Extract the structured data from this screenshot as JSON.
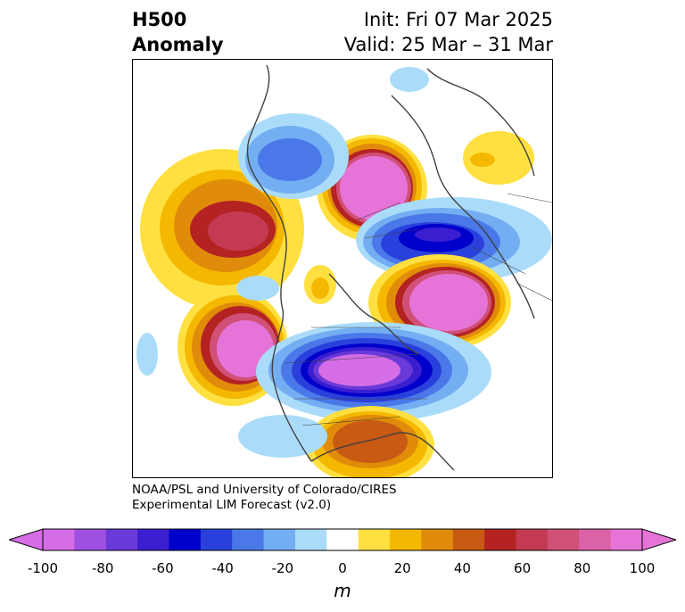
{
  "title": {
    "variable": "H500",
    "type": "Anomaly",
    "init": "Init: Fri 07 Mar 2025",
    "valid": "Valid: 25 Mar – 31 Mar"
  },
  "credit": {
    "line1": "NOAA/PSL and University of Colorado/CIRES",
    "line2": "Experimental LIM Forecast (v2.0)"
  },
  "colorbar": {
    "unit": "m",
    "ticks": [
      "-100",
      "-80",
      "-60",
      "-40",
      "-20",
      "0",
      "20",
      "40",
      "60",
      "80",
      "100"
    ],
    "levels": [
      -100,
      -90,
      -80,
      -70,
      -60,
      -50,
      -40,
      -30,
      -20,
      -10,
      10,
      20,
      30,
      40,
      50,
      60,
      70,
      80,
      90,
      100
    ],
    "colors": [
      "#d56ee6",
      "#a050e0",
      "#6a3ad8",
      "#3a1ed0",
      "#0000cc",
      "#2a40dc",
      "#4a78e8",
      "#74aef2",
      "#aadcfa",
      "#ffffff",
      "#ffe040",
      "#f5b800",
      "#e08c0a",
      "#c85a14",
      "#b42222",
      "#c43a52",
      "#d05078",
      "#dc62a8",
      "#e674d8"
    ]
  },
  "map": {
    "region": "Northern Hemisphere",
    "colors": {
      "coast": "#404040",
      "pos_light": "#ffe040",
      "pos_mid": "#f5b800",
      "pos_orange": "#e08c0a",
      "pos_red": "#b42222",
      "pos_rose": "#c43a52",
      "pos_pink": "#e674d8",
      "neg_light": "#aadcfa",
      "neg_mid": "#74aef2",
      "neg_blue": "#4a78e8",
      "neg_deep": "#0000cc",
      "neg_violet": "#6a3ad8"
    }
  }
}
